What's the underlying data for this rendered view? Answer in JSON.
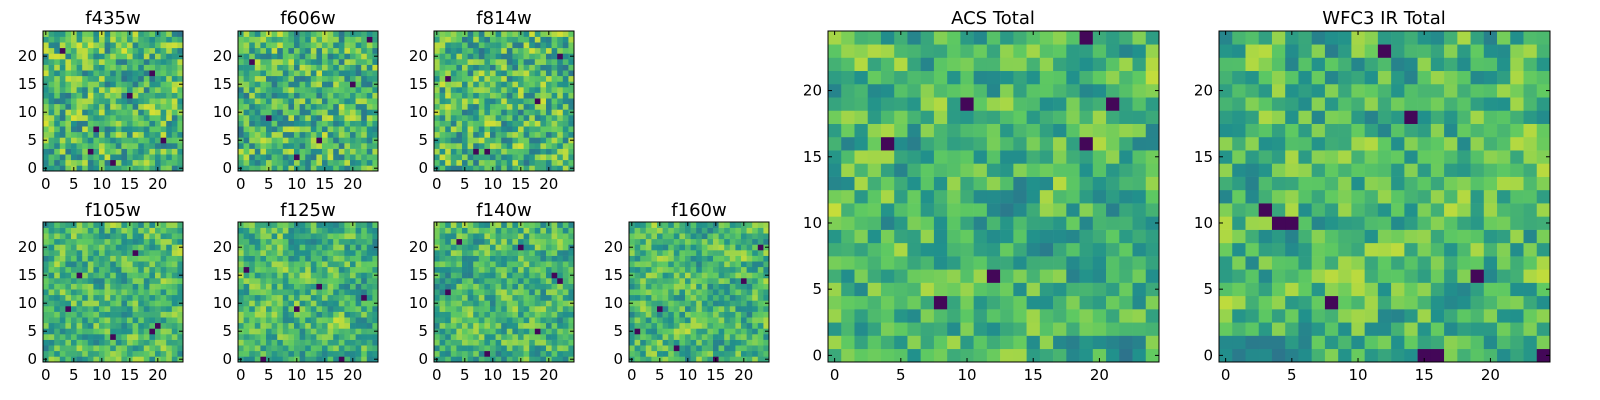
{
  "chart_data": [
    {
      "type": "heatmap",
      "title": "f435w",
      "seed": 11,
      "grid": 25,
      "xticks": [
        "0",
        "5",
        "10",
        "15",
        "20"
      ],
      "yticks": [
        "0",
        "5",
        "10",
        "15",
        "20"
      ],
      "xlim": [
        0,
        25
      ],
      "ylim": [
        0,
        25
      ],
      "low_cells": [
        [
          9,
          7
        ],
        [
          15,
          13
        ],
        [
          19,
          17
        ],
        [
          8,
          3
        ],
        [
          21,
          5
        ],
        [
          3,
          21
        ],
        [
          12,
          1
        ]
      ]
    },
    {
      "type": "heatmap",
      "title": "f606w",
      "seed": 23,
      "grid": 25,
      "xticks": [
        "0",
        "5",
        "10",
        "15",
        "20"
      ],
      "yticks": [
        "0",
        "5",
        "10",
        "15",
        "20"
      ],
      "xlim": [
        0,
        25
      ],
      "ylim": [
        0,
        25
      ],
      "low_cells": [
        [
          5,
          9
        ],
        [
          14,
          5
        ],
        [
          20,
          15
        ],
        [
          2,
          19
        ],
        [
          23,
          23
        ],
        [
          10,
          2
        ]
      ]
    },
    {
      "type": "heatmap",
      "title": "f814w",
      "seed": 37,
      "grid": 25,
      "xticks": [
        "0",
        "5",
        "10",
        "15",
        "20"
      ],
      "yticks": [
        "0",
        "5",
        "10",
        "15",
        "20"
      ],
      "xlim": [
        0,
        25
      ],
      "ylim": [
        0,
        25
      ],
      "low_cells": [
        [
          7,
          3
        ],
        [
          9,
          3
        ],
        [
          18,
          12
        ],
        [
          22,
          20
        ],
        [
          2,
          16
        ]
      ]
    },
    {
      "type": "heatmap",
      "title": "f105w",
      "seed": 41,
      "grid": 25,
      "xticks": [
        "0",
        "5",
        "10",
        "15",
        "20"
      ],
      "yticks": [
        "0",
        "5",
        "10",
        "15",
        "20"
      ],
      "xlim": [
        0,
        25
      ],
      "ylim": [
        0,
        25
      ],
      "low_cells": [
        [
          20,
          6
        ],
        [
          19,
          5
        ],
        [
          6,
          15
        ],
        [
          4,
          9
        ],
        [
          16,
          19
        ],
        [
          12,
          4
        ]
      ]
    },
    {
      "type": "heatmap",
      "title": "f125w",
      "seed": 53,
      "grid": 25,
      "xticks": [
        "0",
        "5",
        "10",
        "15",
        "20"
      ],
      "yticks": [
        "0",
        "5",
        "10",
        "15",
        "20"
      ],
      "xlim": [
        0,
        25
      ],
      "ylim": [
        0,
        25
      ],
      "low_cells": [
        [
          4,
          0
        ],
        [
          10,
          9
        ],
        [
          22,
          11
        ],
        [
          18,
          0
        ],
        [
          1,
          16
        ],
        [
          14,
          13
        ]
      ]
    },
    {
      "type": "heatmap",
      "title": "f140w",
      "seed": 67,
      "grid": 25,
      "xticks": [
        "0",
        "5",
        "10",
        "15",
        "20"
      ],
      "yticks": [
        "0",
        "5",
        "10",
        "15",
        "20"
      ],
      "xlim": [
        0,
        25
      ],
      "ylim": [
        0,
        25
      ],
      "low_cells": [
        [
          21,
          15
        ],
        [
          22,
          14
        ],
        [
          4,
          21
        ],
        [
          9,
          1
        ],
        [
          18,
          5
        ],
        [
          2,
          12
        ],
        [
          15,
          20
        ]
      ]
    },
    {
      "type": "heatmap",
      "title": "f160w",
      "seed": 71,
      "grid": 25,
      "xticks": [
        "0",
        "5",
        "10",
        "15",
        "20"
      ],
      "yticks": [
        "0",
        "5",
        "10",
        "15",
        "20"
      ],
      "xlim": [
        0,
        25
      ],
      "ylim": [
        0,
        25
      ],
      "low_cells": [
        [
          5,
          9
        ],
        [
          8,
          2
        ],
        [
          20,
          14
        ],
        [
          15,
          0
        ],
        [
          1,
          5
        ],
        [
          23,
          20
        ]
      ]
    },
    {
      "type": "heatmap",
      "title": "ACS Total",
      "seed": 83,
      "grid": 25,
      "xticks": [
        "0",
        "5",
        "10",
        "15",
        "20"
      ],
      "yticks": [
        "0",
        "5",
        "10",
        "15",
        "20"
      ],
      "xlim": [
        0,
        25
      ],
      "ylim": [
        0,
        25
      ],
      "low_cells": [
        [
          19,
          24
        ],
        [
          10,
          19
        ],
        [
          19,
          16
        ],
        [
          4,
          16
        ],
        [
          12,
          6
        ],
        [
          8,
          4
        ],
        [
          21,
          19
        ]
      ]
    },
    {
      "type": "heatmap",
      "title": "WFC3 IR Total",
      "seed": 97,
      "grid": 25,
      "xticks": [
        "0",
        "5",
        "10",
        "15",
        "20"
      ],
      "yticks": [
        "0",
        "5",
        "10",
        "15",
        "20"
      ],
      "xlim": [
        0,
        25
      ],
      "ylim": [
        0,
        25
      ],
      "low_cells": [
        [
          12,
          23
        ],
        [
          4,
          10
        ],
        [
          5,
          10
        ],
        [
          3,
          11
        ],
        [
          15,
          0
        ],
        [
          16,
          0
        ],
        [
          19,
          6
        ],
        [
          24,
          0
        ],
        [
          8,
          4
        ],
        [
          14,
          18
        ]
      ]
    }
  ],
  "colormap": [
    "#440154",
    "#3b528b",
    "#21918c",
    "#5ec962",
    "#fde725"
  ]
}
